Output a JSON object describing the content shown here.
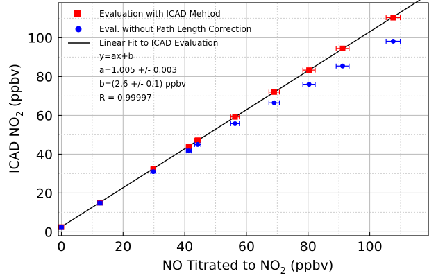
{
  "chart_data": {
    "type": "scatter",
    "xlabel": {
      "main": "NO Titrated to NO",
      "sub": "2",
      "tail": " (ppbv)"
    },
    "ylabel": {
      "main": "ICAD NO",
      "sub": "2",
      "tail": " (ppbv)"
    },
    "xlim": [
      -1,
      119
    ],
    "ylim": [
      -2,
      118
    ],
    "x_ticks": [
      "0",
      "20",
      "40",
      "60",
      "80",
      "100"
    ],
    "x_tick_values": [
      0,
      20,
      40,
      60,
      80,
      100
    ],
    "y_ticks": [
      "0",
      "20",
      "40",
      "60",
      "80",
      "100"
    ],
    "y_tick_values": [
      0,
      20,
      40,
      60,
      80,
      100
    ],
    "grid": true,
    "legend_position": "top-left",
    "series": [
      {
        "name": "Evaluation with ICAD Mehtod",
        "marker": "square",
        "color": "#ff0000",
        "points": [
          {
            "x": 0,
            "y": 2.4,
            "xerr": 0.6
          },
          {
            "x": 12.5,
            "y": 15,
            "xerr": 0.7
          },
          {
            "x": 29.8,
            "y": 32.3,
            "xerr": 0.8
          },
          {
            "x": 41.3,
            "y": 43.8,
            "xerr": 0.8
          },
          {
            "x": 44.2,
            "y": 47.2,
            "xerr": 1.0
          },
          {
            "x": 56.3,
            "y": 59.2,
            "xerr": 1.4
          },
          {
            "x": 69,
            "y": 72,
            "xerr": 1.7
          },
          {
            "x": 80.3,
            "y": 83.3,
            "xerr": 2.0
          },
          {
            "x": 91.2,
            "y": 94.5,
            "xerr": 2.1
          },
          {
            "x": 107.6,
            "y": 110.3,
            "xerr": 2.3
          }
        ]
      },
      {
        "name": "Eval. without Path Length Correction",
        "marker": "circle",
        "color": "#0000ff",
        "points": [
          {
            "x": 0,
            "y": 2.2,
            "xerr": 0.6
          },
          {
            "x": 12.5,
            "y": 14.8,
            "xerr": 0.7
          },
          {
            "x": 29.8,
            "y": 31,
            "xerr": 0.8
          },
          {
            "x": 41.3,
            "y": 41.7,
            "xerr": 0.8
          },
          {
            "x": 44.2,
            "y": 45,
            "xerr": 1.0
          },
          {
            "x": 56.3,
            "y": 55.7,
            "xerr": 1.4
          },
          {
            "x": 69,
            "y": 66.5,
            "xerr": 1.7
          },
          {
            "x": 80.3,
            "y": 76,
            "xerr": 2.0
          },
          {
            "x": 91.2,
            "y": 85.4,
            "xerr": 2.1
          },
          {
            "x": 107.6,
            "y": 98.2,
            "xerr": 2.3
          }
        ]
      }
    ],
    "fit": {
      "name": "Linear Fit to ICAD Evaluation",
      "color": "#000000",
      "slope": 1.005,
      "intercept": 2.6,
      "x_range": [
        -1,
        117
      ]
    },
    "annotations": [
      "y=ax+b",
      "a=1.005 +/- 0.003",
      "b=(2.6 +/- 0.1) ppbv",
      "R = 0.99997"
    ]
  }
}
